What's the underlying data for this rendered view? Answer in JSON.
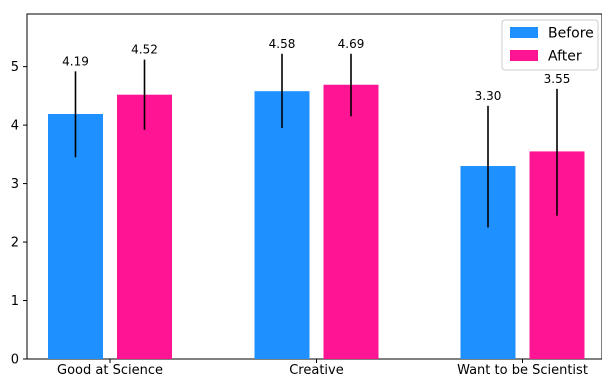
{
  "chart_data": {
    "type": "bar",
    "categories": [
      "Good at Science",
      "Creative",
      "Want to be Scientist"
    ],
    "series": [
      {
        "name": "Before",
        "color": "#1e90ff",
        "values": [
          4.19,
          4.58,
          3.3
        ],
        "labels": [
          "4.19",
          "4.58",
          "3.30"
        ],
        "error_low": [
          3.45,
          3.95,
          2.25
        ],
        "error_high": [
          4.92,
          5.22,
          4.33
        ]
      },
      {
        "name": "After",
        "color": "#ff1493",
        "values": [
          4.52,
          4.69,
          3.55
        ],
        "labels": [
          "4.52",
          "4.69",
          "3.55"
        ],
        "error_low": [
          3.92,
          4.15,
          2.45
        ],
        "error_high": [
          5.12,
          5.22,
          4.62
        ]
      }
    ],
    "yticks": [
      "0",
      "1",
      "2",
      "3",
      "4",
      "5"
    ],
    "ylim": [
      0,
      5.9
    ],
    "grid": false,
    "legend_position": "top-right",
    "error_bar_color": "#000000",
    "title": "",
    "xlabel": "",
    "ylabel": ""
  }
}
